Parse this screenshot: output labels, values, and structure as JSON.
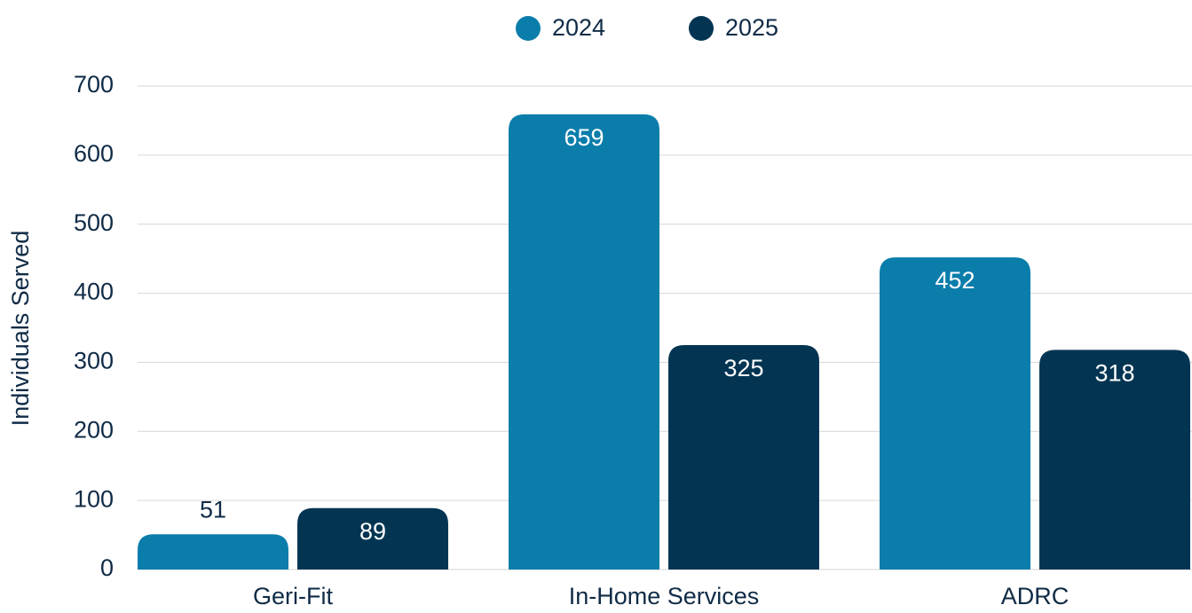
{
  "chart_data": {
    "type": "bar",
    "y_label": "Individuals Served",
    "categories": [
      "Geri-Fit",
      "In-Home Services",
      "ADRC"
    ],
    "series": [
      {
        "name": "2024",
        "color": "#0b7dab",
        "values": [
          51,
          659,
          452
        ]
      },
      {
        "name": "2025",
        "color": "#033553",
        "values": [
          89,
          325,
          318
        ]
      }
    ],
    "ylim": [
      0,
      700
    ],
    "yticks": [
      0,
      100,
      200,
      300,
      400,
      500,
      600,
      700
    ],
    "grid": true,
    "legend": "top"
  }
}
